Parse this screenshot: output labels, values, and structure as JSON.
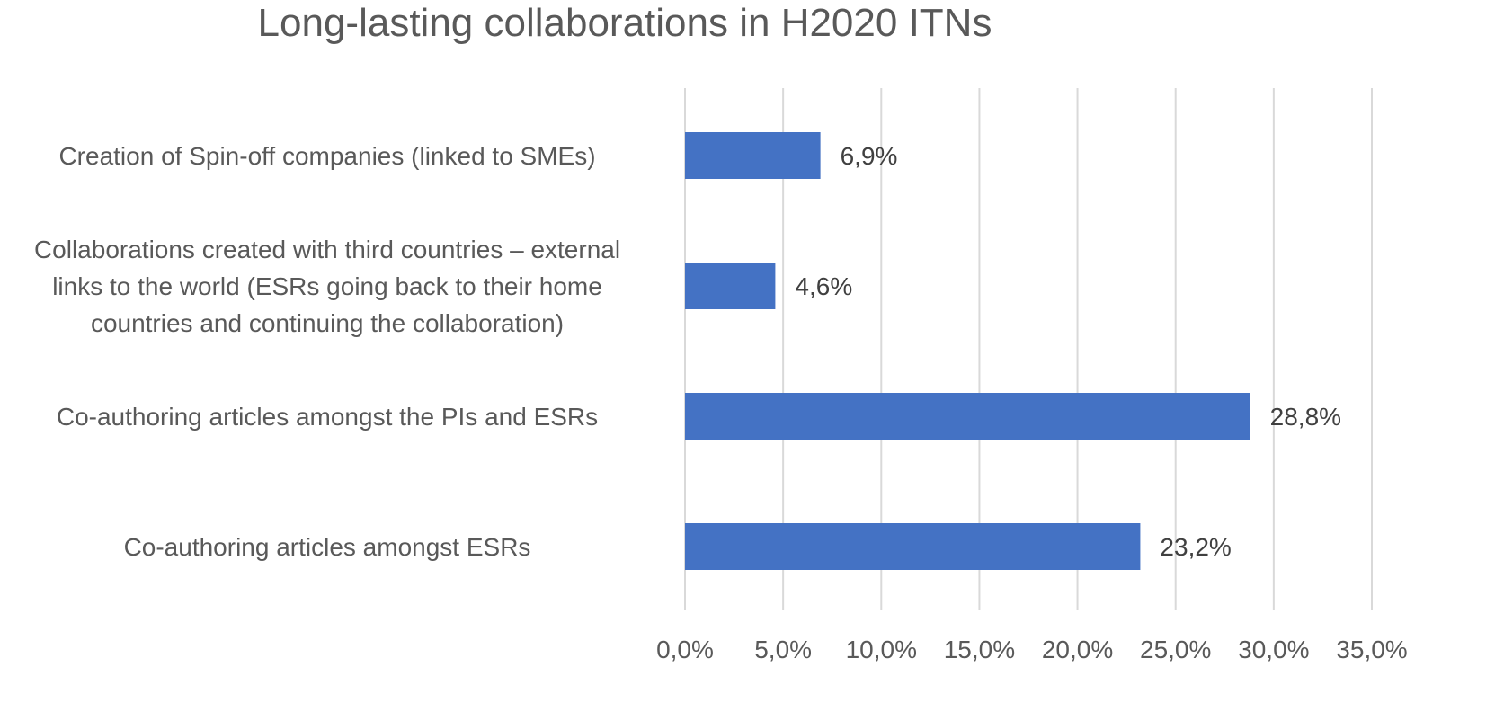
{
  "chart_data": {
    "type": "bar",
    "orientation": "horizontal",
    "title": "Long-lasting collaborations in H2020 ITNs",
    "categories": [
      [
        "Creation of Spin-off companies (linked to SMEs)"
      ],
      [
        "Collaborations created with third countries – external",
        "links to the world (ESRs going back to their home",
        "countries and continuing the collaboration)"
      ],
      [
        "Co-authoring articles amongst the PIs and ESRs"
      ],
      [
        "Co-authoring articles amongst ESRs"
      ]
    ],
    "values": [
      6.9,
      4.6,
      28.8,
      23.2
    ],
    "value_labels": [
      "6,9%",
      "4,6%",
      "28,8%",
      "23,2%"
    ],
    "xlim": [
      0,
      35
    ],
    "xticks": [
      0,
      5,
      10,
      15,
      20,
      25,
      30,
      35
    ],
    "xtick_labels": [
      "0,0%",
      "5,0%",
      "10,0%",
      "15,0%",
      "20,0%",
      "25,0%",
      "30,0%",
      "35,0%"
    ],
    "grid": true,
    "bar_color": "#4472C4",
    "grid_color": "#D9D9D9"
  }
}
